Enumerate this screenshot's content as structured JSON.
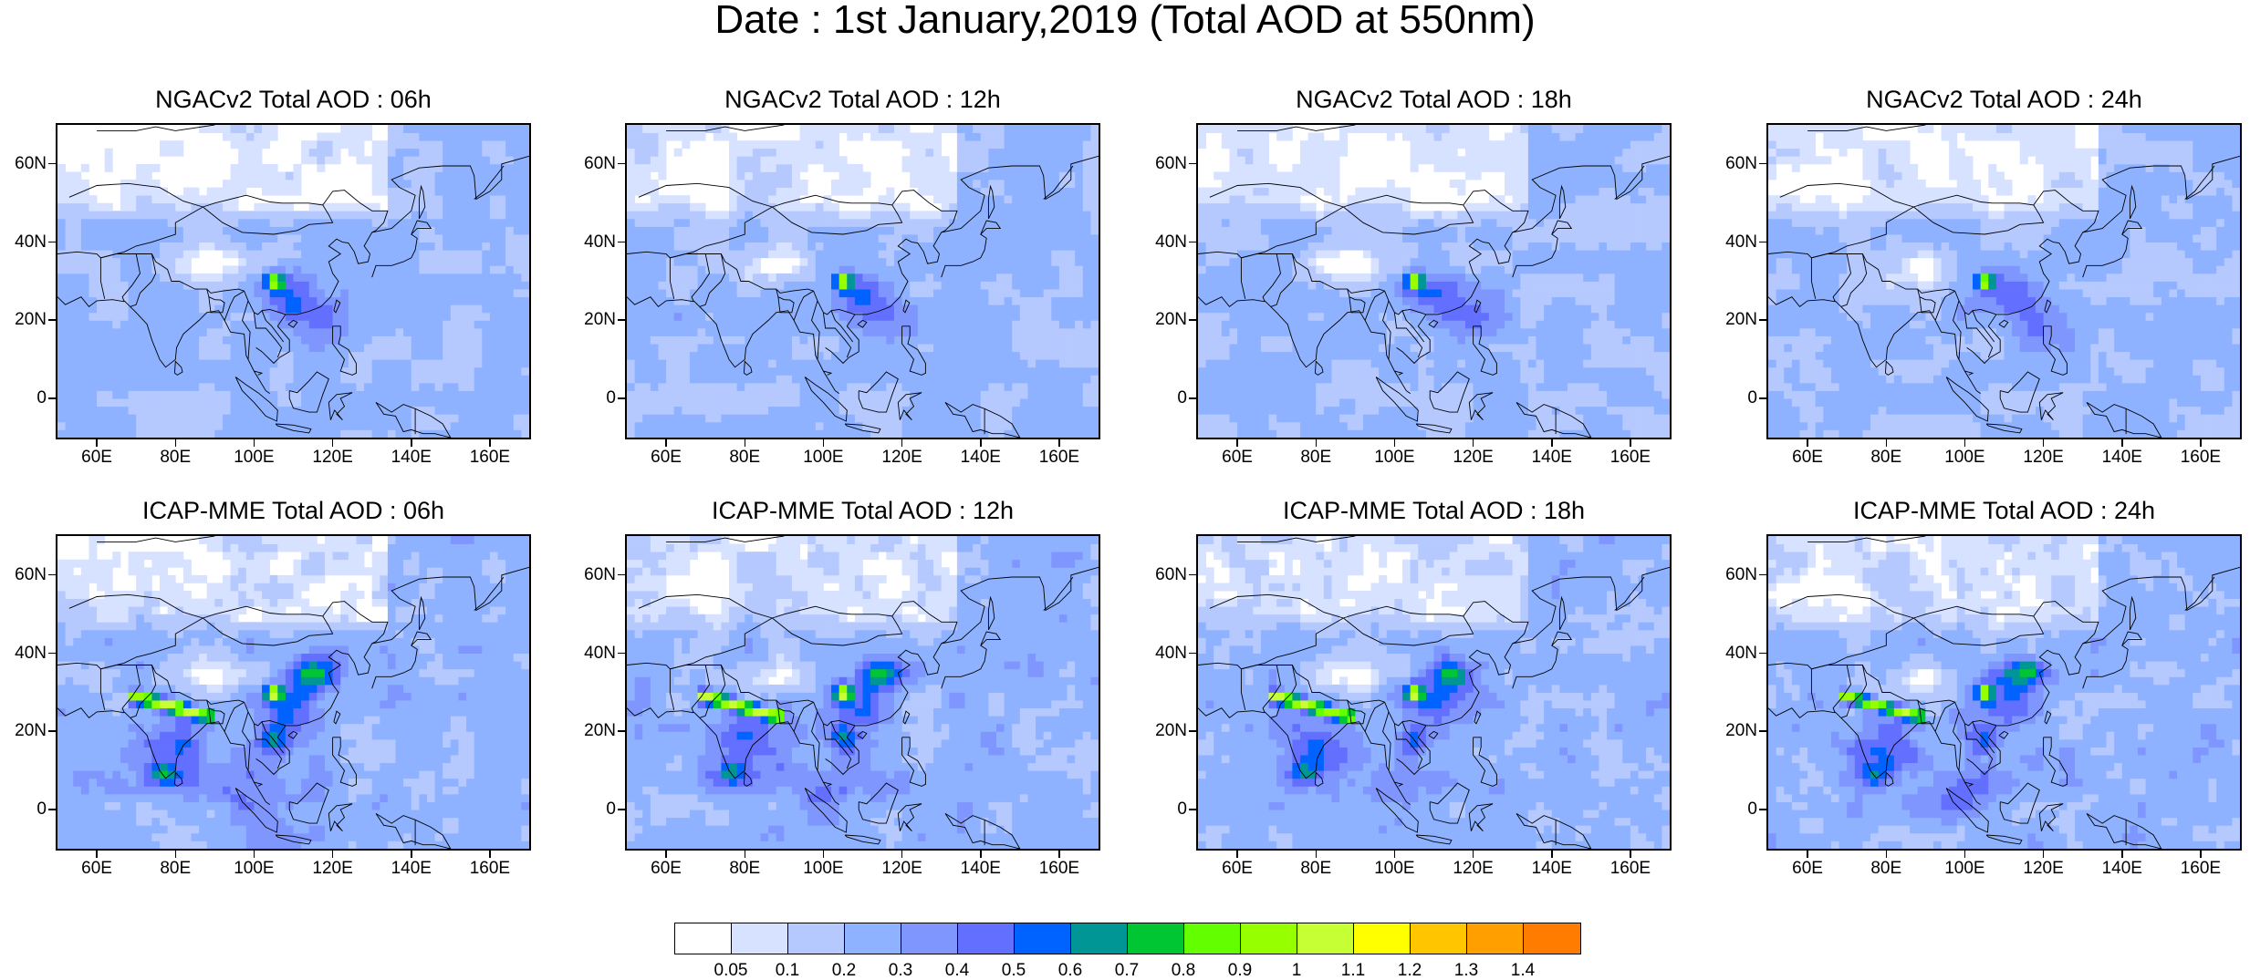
{
  "title": "Date : 1st January,2019 (Total AOD at 550nm)",
  "panels": [
    {
      "title": "NGACv2 Total AOD : 06h",
      "model": "NGACv2",
      "hour": "06h"
    },
    {
      "title": "NGACv2 Total AOD : 12h",
      "model": "NGACv2",
      "hour": "12h"
    },
    {
      "title": "NGACv2 Total AOD : 18h",
      "model": "NGACv2",
      "hour": "18h"
    },
    {
      "title": "NGACv2 Total AOD : 24h",
      "model": "NGACv2",
      "hour": "24h"
    },
    {
      "title": "ICAP-MME Total AOD : 06h",
      "model": "ICAP-MME",
      "hour": "06h"
    },
    {
      "title": "ICAP-MME Total AOD : 12h",
      "model": "ICAP-MME",
      "hour": "12h"
    },
    {
      "title": "ICAP-MME Total AOD : 18h",
      "model": "ICAP-MME",
      "hour": "18h"
    },
    {
      "title": "ICAP-MME Total AOD : 24h",
      "model": "ICAP-MME",
      "hour": "24h"
    }
  ],
  "axes": {
    "lon_labels": [
      "60E",
      "80E",
      "100E",
      "120E",
      "140E",
      "160E"
    ],
    "lat_labels": [
      "60N",
      "40N",
      "20N",
      "0"
    ]
  },
  "colorbar": {
    "colors": [
      "#ffffff",
      "#d6e2ff",
      "#b5c9ff",
      "#8eb2ff",
      "#7f96ff",
      "#6370ff",
      "#0063ff",
      "#009696",
      "#00c633",
      "#63ff00",
      "#96ff00",
      "#c6ff33",
      "#ffff00",
      "#ffc600",
      "#ffa000",
      "#ff7c00",
      "#ff1900"
    ],
    "labels": [
      "0.05",
      "0.1",
      "0.2",
      "0.3",
      "0.4",
      "0.5",
      "0.6",
      "0.7",
      "0.8",
      "0.9",
      "1",
      "1.1",
      "1.2",
      "1.3",
      "1.4"
    ]
  }
}
